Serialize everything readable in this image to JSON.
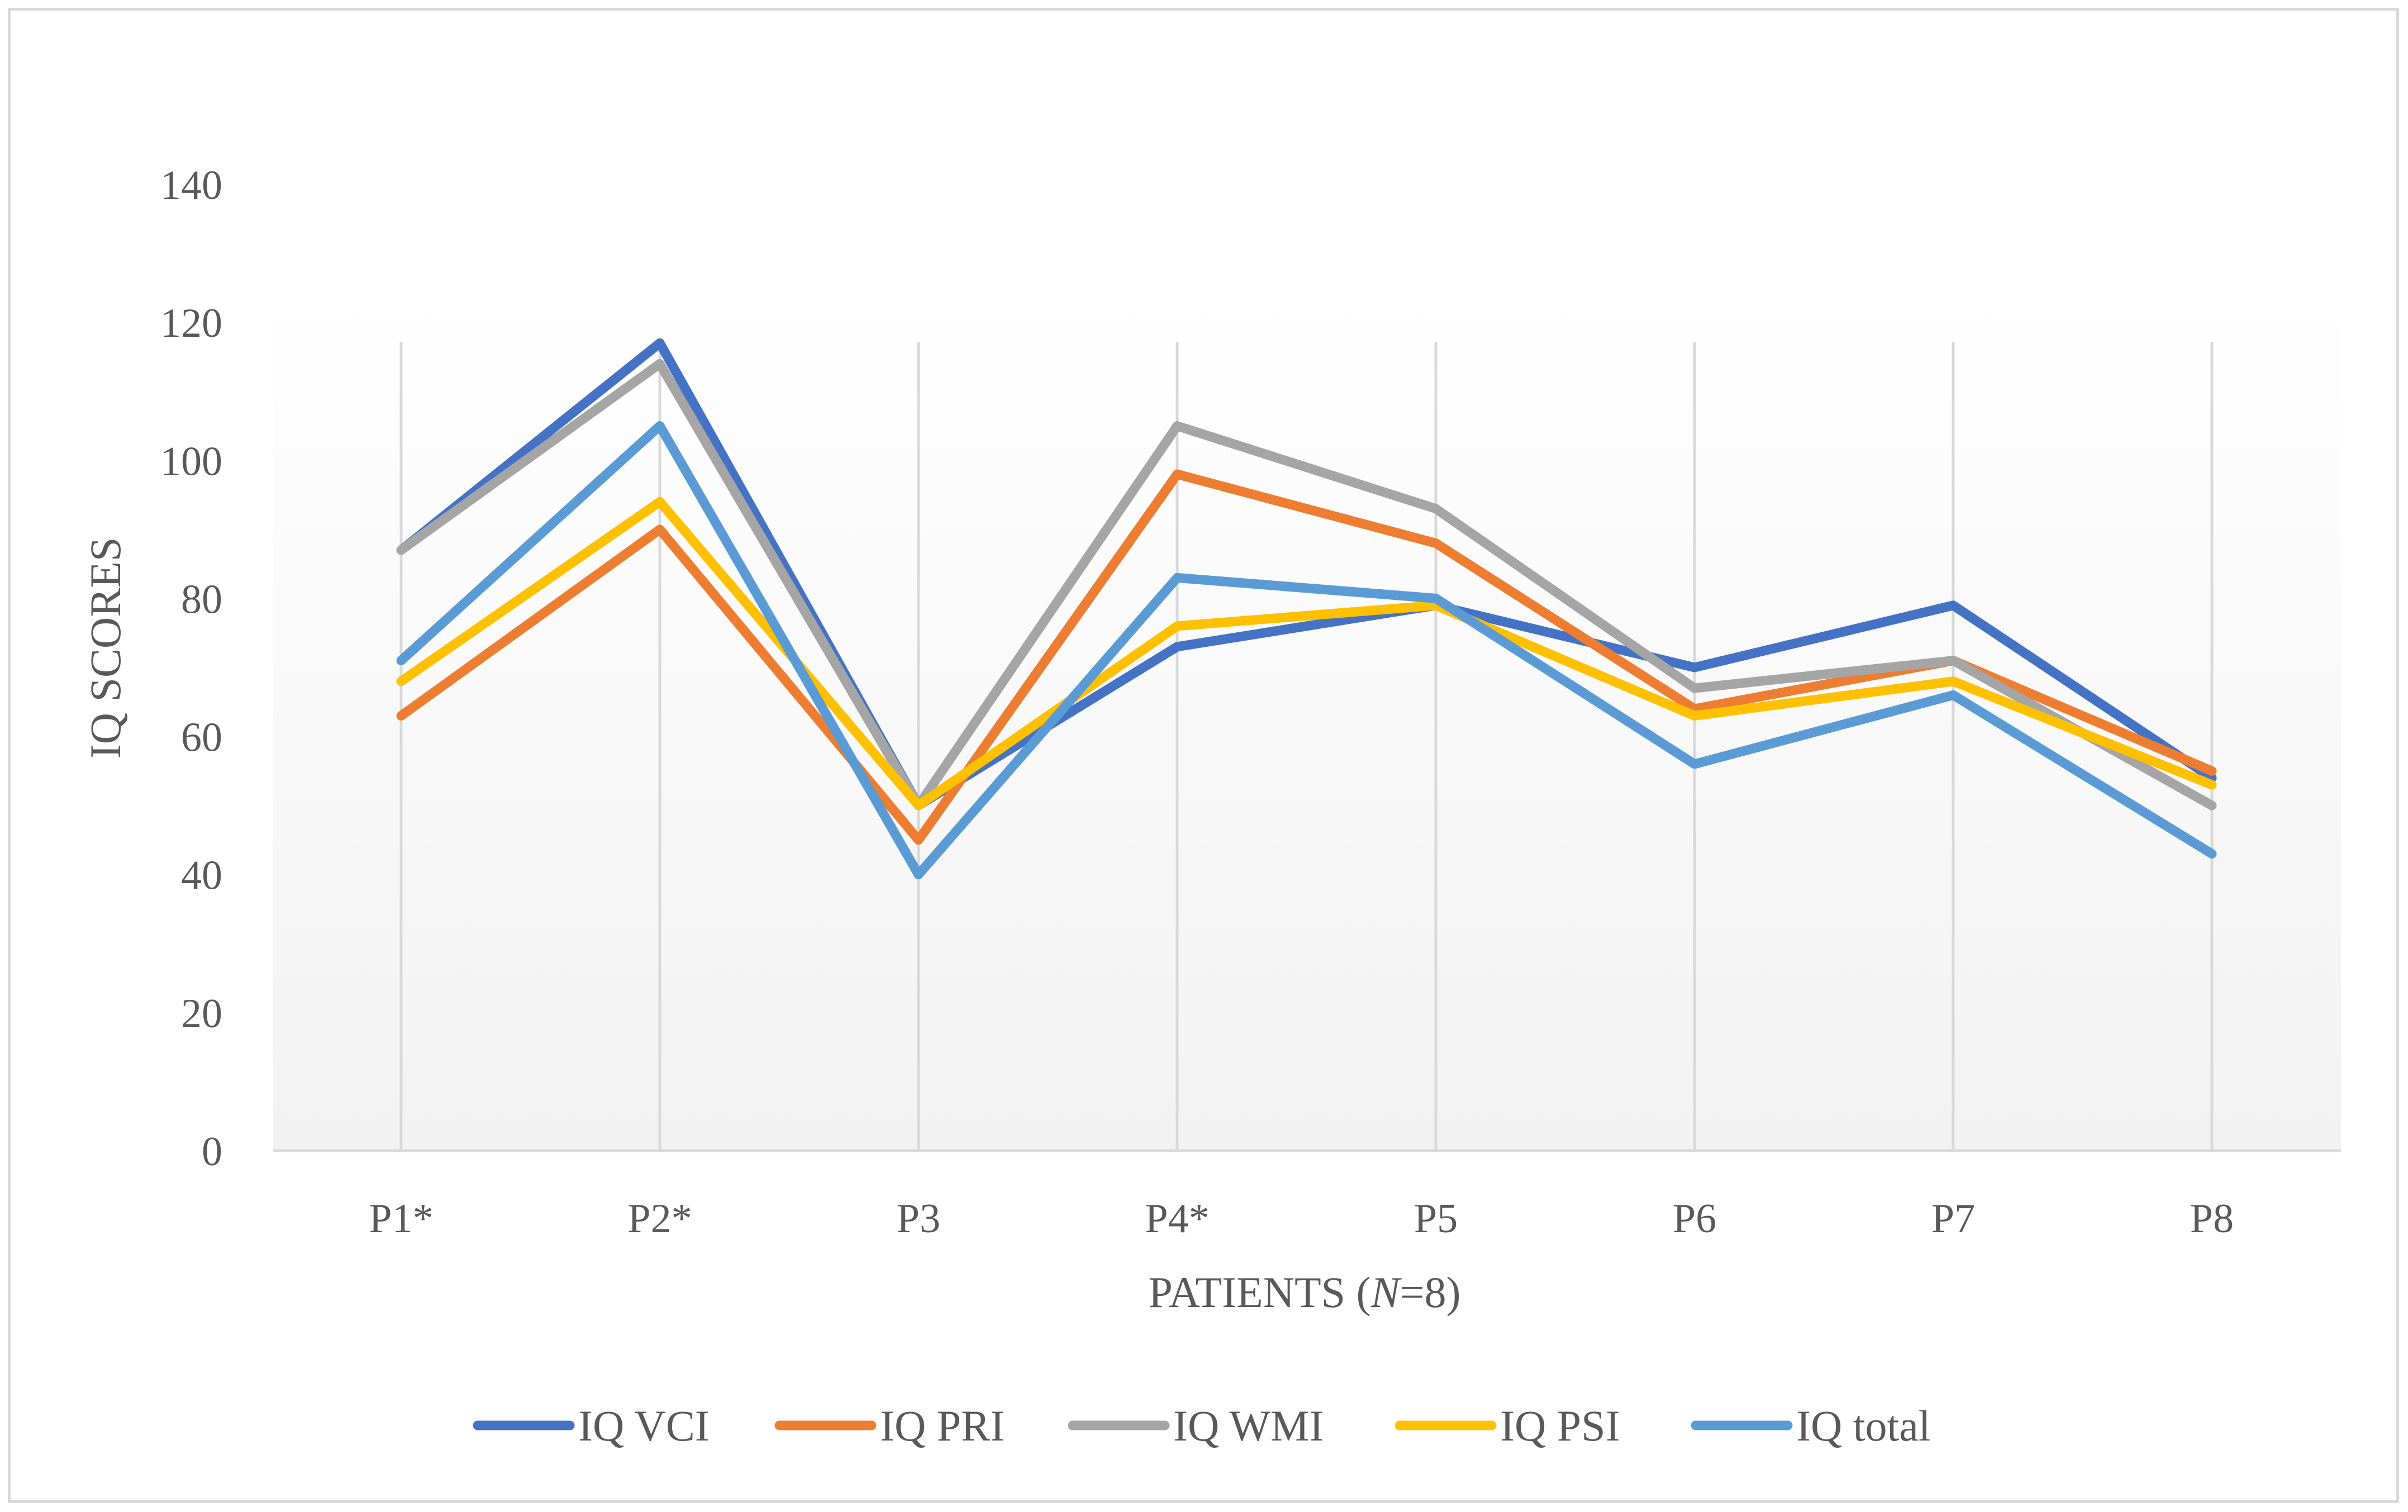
{
  "chart_data": {
    "type": "line",
    "title": "",
    "xlabel": "PATIENTS (N=8)",
    "xlabel_parts": [
      "PATIENTS (",
      "N",
      "=8)"
    ],
    "ylabel": "IQ SCORES",
    "ylim": [
      0,
      140
    ],
    "yticks": [
      0,
      20,
      40,
      60,
      80,
      100,
      120,
      140
    ],
    "ytick_labels": [
      "0",
      "20",
      "40",
      "60",
      "80",
      "100",
      "120",
      "140"
    ],
    "categories": [
      "P1*",
      "P2*",
      "P3",
      "P4*",
      "P5",
      "P6",
      "P7",
      "P8"
    ],
    "grid": "vertical",
    "legend_position": "bottom",
    "series": [
      {
        "name": "IQ VCI",
        "color": "#4472c4",
        "values": [
          87,
          117,
          50,
          73,
          79,
          70,
          79,
          54
        ]
      },
      {
        "name": "IQ PRI",
        "color": "#ed7d31",
        "values": [
          63,
          90,
          45,
          98,
          88,
          64,
          71,
          55
        ]
      },
      {
        "name": "IQ WMI",
        "color": "#a5a5a5",
        "values": [
          87,
          114,
          50,
          105,
          93,
          67,
          71,
          50
        ]
      },
      {
        "name": "IQ PSI",
        "color": "#ffc000",
        "values": [
          68,
          94,
          50,
          76,
          79,
          63,
          68,
          53
        ]
      },
      {
        "name": "IQ total",
        "color": "#5b9bd5",
        "values": [
          71,
          105,
          40,
          83,
          80,
          56,
          66,
          43
        ]
      }
    ]
  }
}
